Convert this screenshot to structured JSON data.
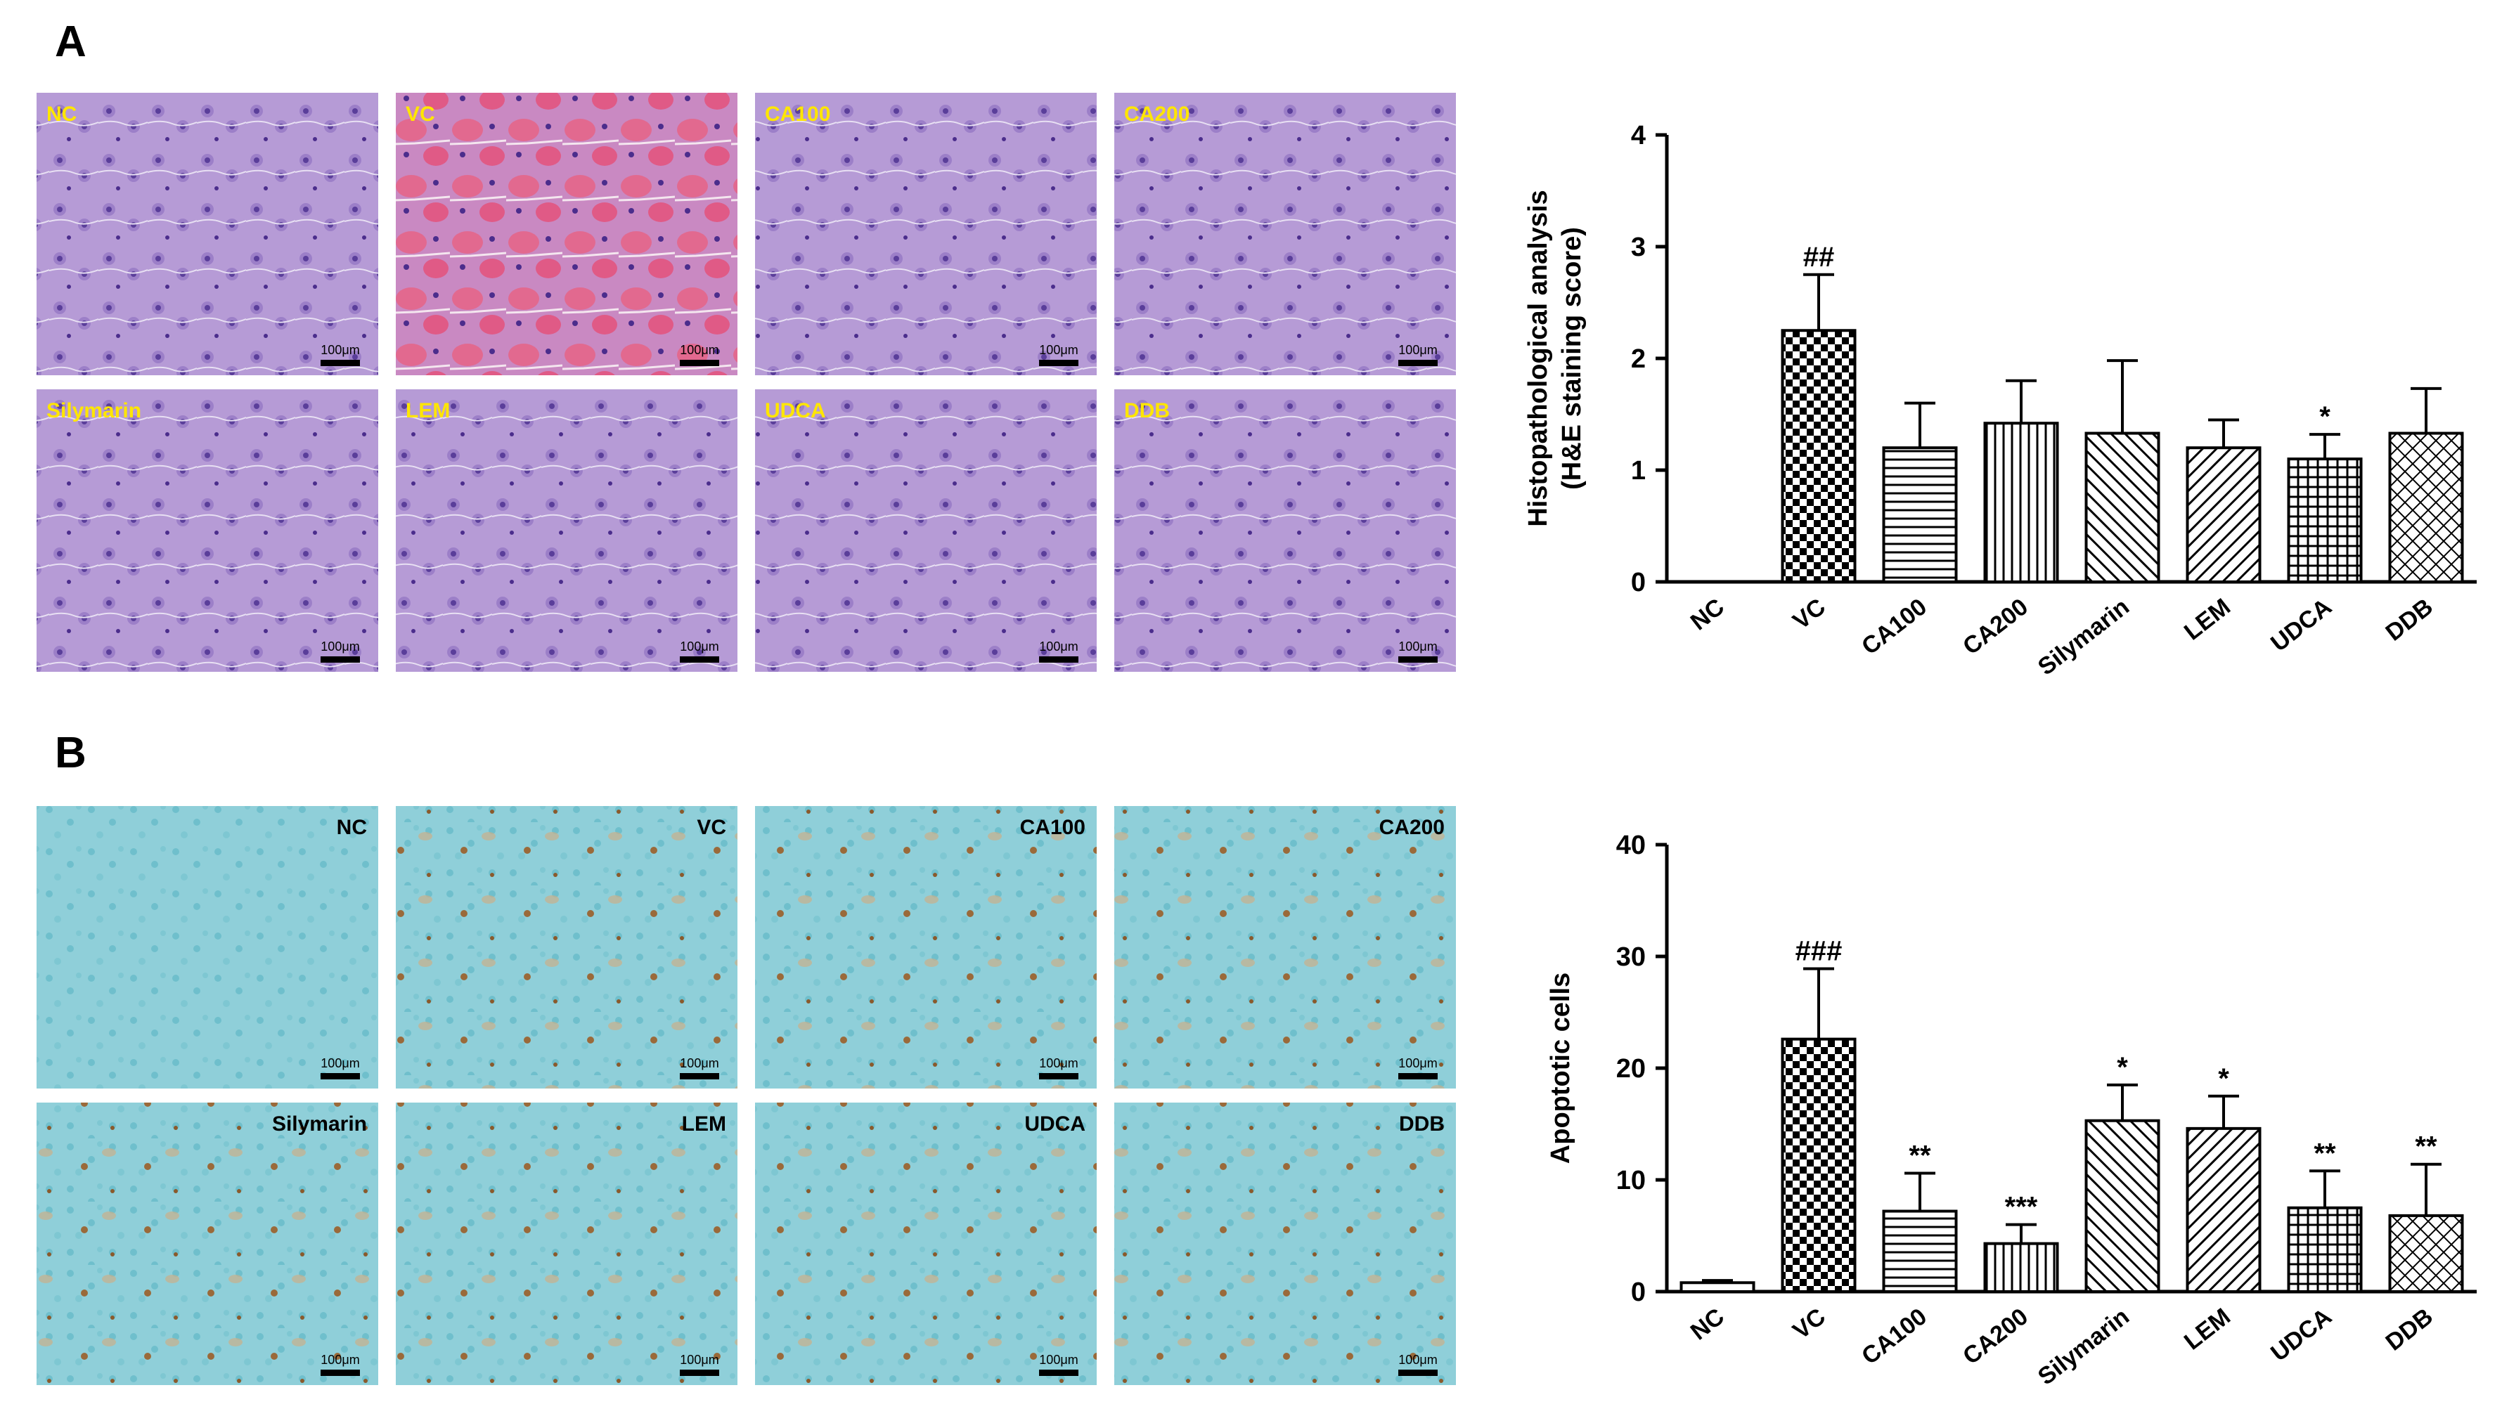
{
  "panel_labels": [
    "A",
    "B"
  ],
  "micrographs": [
    {
      "labels": [
        "NC",
        "VC",
        "CA100",
        "CA200",
        "Silymarin",
        "LEM",
        "UDCA",
        "DDB"
      ],
      "scale_bar": "100μm"
    },
    {
      "labels": [
        "NC",
        "VC",
        "CA100",
        "CA200",
        "Silymarin",
        "LEM",
        "UDCA",
        "DDB"
      ],
      "scale_bar": "100μm"
    }
  ],
  "chart_data": [
    {
      "type": "bar",
      "ylabel": [
        "Histopathological analysis",
        "(H&E staining score)"
      ],
      "categories": [
        "NC",
        "VC",
        "CA100",
        "CA200",
        "Silymarin",
        "LEM",
        "UDCA",
        "DDB"
      ],
      "values": [
        0,
        2.25,
        1.2,
        1.42,
        1.33,
        1.2,
        1.1,
        1.33
      ],
      "errors": [
        0,
        0.5,
        0.4,
        0.38,
        0.65,
        0.25,
        0.22,
        0.4
      ],
      "annotations": [
        null,
        "##",
        null,
        null,
        null,
        null,
        "*",
        null
      ],
      "ylim": [
        0,
        4
      ],
      "yticks": [
        0,
        1,
        2,
        3,
        4
      ]
    },
    {
      "type": "bar",
      "ylabel": [
        "Apoptotic cells"
      ],
      "categories": [
        "NC",
        "VC",
        "CA100",
        "CA200",
        "Silymarin",
        "LEM",
        "UDCA",
        "DDB"
      ],
      "values": [
        0.8,
        22.6,
        7.2,
        4.3,
        15.3,
        14.6,
        7.5,
        6.8
      ],
      "errors": [
        0.2,
        6.3,
        3.4,
        1.7,
        3.2,
        2.9,
        3.3,
        4.6
      ],
      "annotations": [
        null,
        "###",
        "**",
        "***",
        "*",
        "*",
        "**",
        "**"
      ],
      "ylim": [
        0,
        40
      ],
      "yticks": [
        0,
        10,
        20,
        30,
        40
      ]
    }
  ]
}
